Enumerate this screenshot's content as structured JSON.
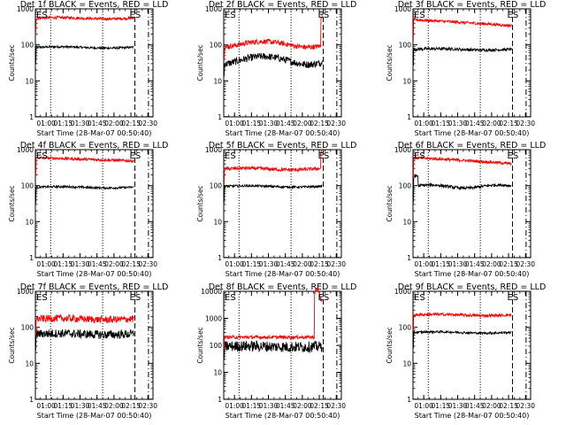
{
  "chart_data": [
    {
      "type": "line",
      "title": "Det 1f BLACK = Events, RED = LLD",
      "xlabel": "Start Time (28-Mar-07 00:50:40)",
      "ylabel": "Counts/sec",
      "y_scale": "log",
      "ylim": [
        1,
        1000
      ],
      "y_ticks": [
        "1",
        "10",
        "100",
        "1000"
      ],
      "x_ticks": [
        "01:00",
        "01:15",
        "01:30",
        "01:45",
        "02:00",
        "02:15",
        "02:30"
      ],
      "annotations": [
        {
          "text": "ES"
        },
        {
          "text": "ES"
        }
      ],
      "series": [
        {
          "name": "Events",
          "color": "#000000",
          "level": 85,
          "noise": 0.03,
          "profile": "flat"
        },
        {
          "name": "LLD",
          "color": "#ff0000",
          "level": 550,
          "noise": 0.04,
          "profile": "flat"
        }
      ]
    },
    {
      "type": "line",
      "title": "Det 2f BLACK = Events, RED = LLD",
      "xlabel": "Start Time (28-Mar-07 00:50:40)",
      "ylabel": "Counts/sec",
      "y_scale": "log",
      "ylim": [
        1,
        1000
      ],
      "y_ticks": [
        "1",
        "10",
        "100",
        "1000"
      ],
      "x_ticks": [
        "01:00",
        "01:15",
        "01:30",
        "01:45",
        "02:00",
        "02:15",
        "02:30"
      ],
      "annotations": [
        {
          "text": "ES"
        },
        {
          "text": "ES"
        }
      ],
      "series": [
        {
          "name": "Events",
          "color": "#000000",
          "level": 38,
          "noise": 0.1,
          "profile": "wave"
        },
        {
          "name": "LLD",
          "color": "#ff0000",
          "level": 105,
          "noise": 0.07,
          "profile": "wave_spike"
        }
      ]
    },
    {
      "type": "line",
      "title": "Det 3f BLACK = Events, RED = LLD",
      "xlabel": "Start Time (28-Mar-07 00:50:40)",
      "ylabel": "Counts/sec",
      "y_scale": "log",
      "ylim": [
        1,
        1000
      ],
      "y_ticks": [
        "1",
        "10",
        "100",
        "1000"
      ],
      "x_ticks": [
        "01:00",
        "01:15",
        "01:30",
        "01:45",
        "02:00",
        "02:15",
        "02:30"
      ],
      "annotations": [
        {
          "text": "ES"
        },
        {
          "text": "ES"
        }
      ],
      "series": [
        {
          "name": "Events",
          "color": "#000000",
          "level": 75,
          "noise": 0.04,
          "profile": "flat"
        },
        {
          "name": "LLD",
          "color": "#ff0000",
          "level": 400,
          "noise": 0.04,
          "profile": "decline"
        }
      ]
    },
    {
      "type": "line",
      "title": "Det 4f BLACK = Events, RED = LLD",
      "xlabel": "Start Time (28-Mar-07 00:50:40)",
      "ylabel": "Counts/sec",
      "y_scale": "log",
      "ylim": [
        1,
        1000
      ],
      "y_ticks": [
        "1",
        "10",
        "100",
        "1000"
      ],
      "x_ticks": [
        "01:00",
        "01:15",
        "01:30",
        "01:45",
        "02:00",
        "02:15",
        "02:30"
      ],
      "annotations": [
        {
          "text": "ES"
        },
        {
          "text": "ES"
        }
      ],
      "series": [
        {
          "name": "Events",
          "color": "#000000",
          "level": 90,
          "noise": 0.03,
          "profile": "flat"
        },
        {
          "name": "LLD",
          "color": "#ff0000",
          "level": 520,
          "noise": 0.04,
          "profile": "decline_small"
        }
      ]
    },
    {
      "type": "line",
      "title": "Det 5f BLACK = Events, RED = LLD",
      "xlabel": "Start Time (28-Mar-07 00:50:40)",
      "ylabel": "Counts/sec",
      "y_scale": "log",
      "ylim": [
        1,
        1000
      ],
      "y_ticks": [
        "1",
        "10",
        "100",
        "1000"
      ],
      "x_ticks": [
        "01:00",
        "01:15",
        "01:30",
        "01:45",
        "02:00",
        "02:15",
        "02:30"
      ],
      "annotations": [
        {
          "text": "ES"
        },
        {
          "text": "ES"
        }
      ],
      "series": [
        {
          "name": "Events",
          "color": "#000000",
          "level": 95,
          "noise": 0.03,
          "profile": "flat"
        },
        {
          "name": "LLD",
          "color": "#ff0000",
          "level": 290,
          "noise": 0.05,
          "profile": "flat_spike"
        }
      ]
    },
    {
      "type": "line",
      "title": "Det 6f BLACK = Events, RED = LLD",
      "xlabel": "Start Time (28-Mar-07 00:50:40)",
      "ylabel": "Counts/sec",
      "y_scale": "log",
      "ylim": [
        1,
        1000
      ],
      "y_ticks": [
        "1",
        "10",
        "100",
        "1000"
      ],
      "x_ticks": [
        "01:00",
        "01:15",
        "01:30",
        "01:45",
        "02:00",
        "02:15",
        "02:30"
      ],
      "annotations": [
        {
          "text": "ES"
        },
        {
          "text": "ES"
        }
      ],
      "series": [
        {
          "name": "Events",
          "color": "#000000",
          "level": 95,
          "noise": 0.04,
          "profile": "hump"
        },
        {
          "name": "LLD",
          "color": "#ff0000",
          "level": 480,
          "noise": 0.04,
          "profile": "decline"
        }
      ]
    },
    {
      "type": "line",
      "title": "Det 7f BLACK = Events, RED = LLD",
      "xlabel": "Start Time (28-Mar-07 00:50:40)",
      "ylabel": "Counts/sec",
      "y_scale": "log",
      "ylim": [
        1,
        1000
      ],
      "y_ticks": [
        "1",
        "10",
        "100",
        "1000"
      ],
      "x_ticks": [
        "01:00",
        "01:15",
        "01:30",
        "01:45",
        "02:00",
        "02:15",
        "02:30"
      ],
      "annotations": [
        {
          "text": "ES"
        },
        {
          "text": "ES"
        }
      ],
      "series": [
        {
          "name": "Events",
          "color": "#000000",
          "level": 65,
          "noise": 0.12,
          "profile": "flat"
        },
        {
          "name": "LLD",
          "color": "#ff0000",
          "level": 170,
          "noise": 0.1,
          "profile": "flat"
        }
      ]
    },
    {
      "type": "line",
      "title": "Det 8f BLACK = Events, RED = LLD",
      "xlabel": "Start Time (28-Mar-07 00:50:40)",
      "ylabel": "Counts/sec",
      "y_scale": "log",
      "ylim": [
        1,
        10000
      ],
      "y_ticks": [
        "1",
        "10",
        "100",
        "1000",
        "10000"
      ],
      "x_ticks": [
        "01:00",
        "01:15",
        "01:30",
        "01:45",
        "02:00",
        "02:15",
        "02:30"
      ],
      "annotations": [
        {
          "text": "ES"
        },
        {
          "text": "ES"
        }
      ],
      "series": [
        {
          "name": "Events",
          "color": "#000000",
          "level": 90,
          "noise": 0.2,
          "profile": "flat"
        },
        {
          "name": "LLD",
          "color": "#ff0000",
          "level": 200,
          "noise": 0.06,
          "profile": "big_spike"
        }
      ]
    },
    {
      "type": "line",
      "title": "Det 9f BLACK = Events, RED = LLD",
      "xlabel": "Start Time (28-Mar-07 00:50:40)",
      "ylabel": "Counts/sec",
      "y_scale": "log",
      "ylim": [
        1,
        1000
      ],
      "y_ticks": [
        "1",
        "10",
        "100",
        "1000"
      ],
      "x_ticks": [
        "01:00",
        "01:15",
        "01:30",
        "01:45",
        "02:00",
        "02:15",
        "02:30"
      ],
      "annotations": [
        {
          "text": "ES"
        },
        {
          "text": "ES"
        }
      ],
      "series": [
        {
          "name": "Events",
          "color": "#000000",
          "level": 72,
          "noise": 0.03,
          "profile": "flat"
        },
        {
          "name": "LLD",
          "color": "#ff0000",
          "level": 220,
          "noise": 0.04,
          "profile": "flat"
        }
      ]
    }
  ]
}
